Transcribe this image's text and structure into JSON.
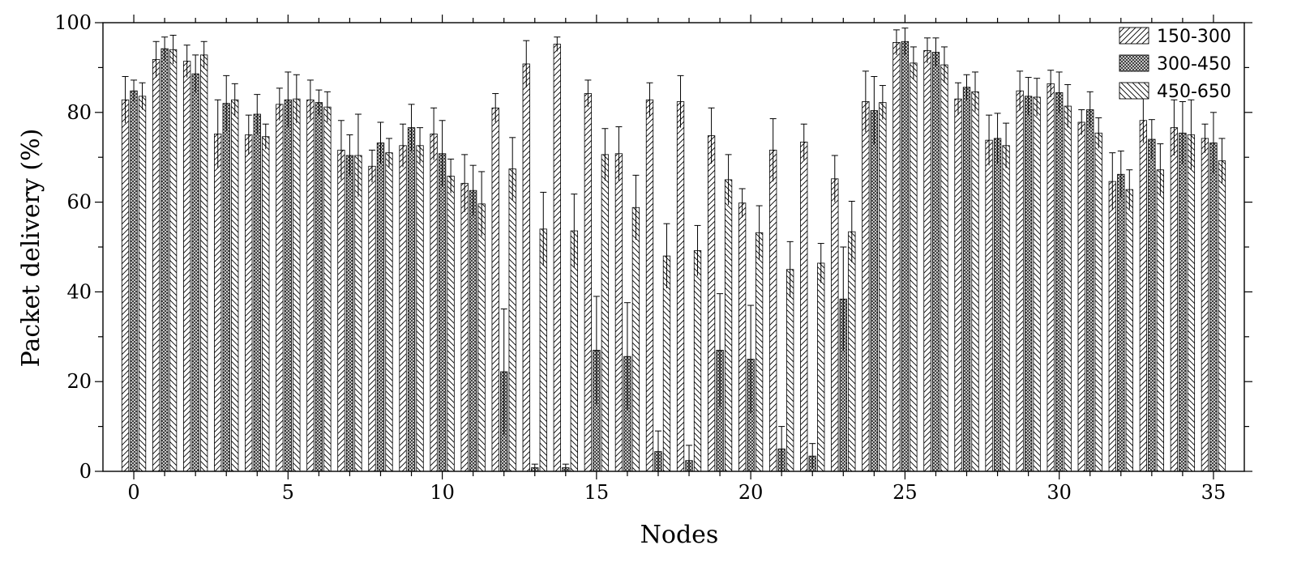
{
  "chart_data": {
    "type": "bar",
    "xlabel": "Nodes",
    "ylabel": "Packet delivery (%)",
    "ylim": [
      0,
      100
    ],
    "xlim": [
      -1,
      36
    ],
    "x_ticks": [
      0,
      5,
      10,
      15,
      20,
      25,
      30,
      35
    ],
    "y_ticks": [
      0,
      20,
      40,
      60,
      80,
      100
    ],
    "grid": false,
    "legend_position": "top-right",
    "x": [
      0,
      1,
      2,
      3,
      4,
      5,
      6,
      7,
      8,
      9,
      10,
      11,
      12,
      13,
      14,
      15,
      16,
      17,
      18,
      19,
      20,
      21,
      22,
      23,
      24,
      25,
      26,
      27,
      28,
      29,
      30,
      31,
      32,
      33,
      34,
      35
    ],
    "series": [
      {
        "name": "150-300",
        "values": [
          82.8,
          91.8,
          91.4,
          75.2,
          75.0,
          81.8,
          82.8,
          71.6,
          68.0,
          72.6,
          75.2,
          64.2,
          81.0,
          90.8,
          95.2,
          84.2,
          70.8,
          82.8,
          82.4,
          74.8,
          59.8,
          71.6,
          73.4,
          65.2,
          82.4,
          95.6,
          93.8,
          83.0,
          73.8,
          84.8,
          86.4,
          77.8,
          64.6,
          78.2,
          76.6,
          74.2
        ],
        "errors": [
          5.2,
          4.0,
          3.6,
          7.6,
          4.4,
          3.6,
          4.4,
          6.6,
          3.6,
          4.8,
          5.8,
          6.4,
          3.2,
          5.2,
          1.6,
          3.0,
          6.0,
          3.8,
          5.8,
          6.2,
          3.2,
          7.0,
          4.0,
          5.2,
          6.8,
          2.8,
          2.8,
          3.6,
          5.6,
          4.4,
          3.0,
          2.8,
          6.4,
          5.0,
          6.2,
          3.2
        ]
      },
      {
        "name": "300-450",
        "values": [
          84.8,
          94.2,
          88.6,
          82.0,
          79.6,
          82.8,
          82.2,
          70.4,
          73.2,
          76.6,
          70.8,
          62.6,
          22.2,
          0.8,
          0.8,
          27.0,
          25.6,
          4.4,
          2.4,
          27.0,
          25.0,
          5.0,
          3.4,
          38.4,
          80.4,
          95.8,
          93.4,
          85.6,
          74.2,
          83.6,
          84.4,
          80.6,
          66.2,
          74.0,
          75.4,
          73.2
        ],
        "errors": [
          2.4,
          2.6,
          4.2,
          6.2,
          4.4,
          6.2,
          2.8,
          4.6,
          4.6,
          5.2,
          7.4,
          5.6,
          14.0,
          0.8,
          0.8,
          12.0,
          12.0,
          4.6,
          3.4,
          12.6,
          12.0,
          5.0,
          2.8,
          11.6,
          7.6,
          3.0,
          3.2,
          2.8,
          5.6,
          4.2,
          4.6,
          4.0,
          5.2,
          4.4,
          7.0,
          6.8
        ]
      },
      {
        "name": "450-650",
        "values": [
          83.6,
          94.0,
          92.8,
          82.8,
          74.6,
          83.0,
          81.2,
          70.4,
          71.0,
          72.6,
          65.8,
          59.6,
          67.4,
          54.0,
          53.6,
          70.6,
          58.8,
          48.0,
          49.2,
          65.0,
          53.2,
          45.0,
          46.4,
          53.4,
          82.2,
          91.0,
          90.6,
          84.6,
          72.6,
          83.4,
          81.4,
          75.4,
          62.8,
          67.2,
          75.0,
          69.2
        ],
        "errors": [
          3.0,
          3.2,
          3.0,
          3.6,
          2.8,
          5.4,
          3.4,
          9.2,
          3.2,
          4.0,
          3.8,
          7.2,
          7.0,
          8.2,
          8.2,
          5.8,
          7.2,
          7.2,
          5.6,
          5.6,
          6.0,
          6.2,
          4.4,
          6.8,
          3.8,
          3.6,
          4.0,
          4.4,
          5.0,
          4.2,
          4.8,
          3.4,
          4.4,
          5.8,
          7.8,
          5.0
        ]
      }
    ]
  }
}
